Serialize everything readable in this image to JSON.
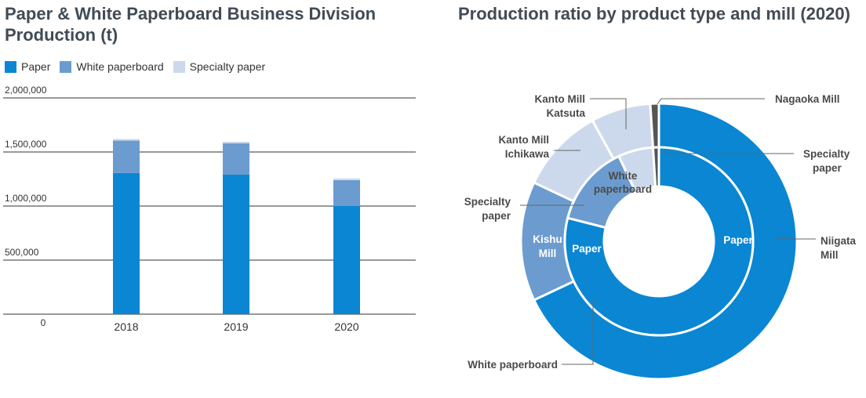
{
  "colors": {
    "paper": "#0a86d3",
    "white_paperboard": "#6c9ccf",
    "specialty_paper": "#ccd9ec",
    "nagaoka": "#555555",
    "axis": "#333333"
  },
  "chart_data": [
    {
      "type": "bar",
      "stacked": true,
      "title": "Paper & White Paperboard Business Division Production (t)",
      "categories": [
        "2018",
        "2019",
        "2020"
      ],
      "series": [
        {
          "name": "Paper",
          "color": "#0a86d3",
          "values": [
            1305000,
            1290000,
            1000000
          ]
        },
        {
          "name": "White paperboard",
          "color": "#6c9ccf",
          "values": [
            300000,
            290000,
            240000
          ]
        },
        {
          "name": "Specialty paper",
          "color": "#ccd9ec",
          "values": [
            15000,
            15000,
            15000
          ]
        }
      ],
      "y_ticks": [
        "0",
        "500,000",
        "1,000,000",
        "1,500,000",
        "2,000,000"
      ],
      "ylim": [
        0,
        2000000
      ],
      "legend": "top-left",
      "grid": true
    },
    {
      "type": "pie",
      "subtype": "nested-donut",
      "title": "Production ratio by product type and mill (2020)",
      "inner_ring": {
        "slices": [
          {
            "label": "Paper",
            "value": 79,
            "color": "#0a86d3"
          },
          {
            "label": "Paper",
            "value": 14,
            "color": "#6c9ccf"
          },
          {
            "label": "White paperboard",
            "value": 6,
            "color": "#ccd9ec"
          },
          {
            "label": "Specialty paper",
            "value": 1,
            "color": "#555555"
          }
        ]
      },
      "outer_ring": {
        "slices": [
          {
            "label": "Niigata Mill",
            "value": 68,
            "color": "#0a86d3"
          },
          {
            "label": "Kishu Mill",
            "value": 14,
            "color": "#6c9ccf"
          },
          {
            "label": "Kanto Mill Ichikawa",
            "value": 10,
            "color": "#ccd9ec"
          },
          {
            "label": "Kanto Mill Katsuta",
            "value": 7,
            "color": "#ccd9ec"
          },
          {
            "label": "Nagaoka Mill",
            "value": 1,
            "color": "#555555"
          }
        ]
      },
      "callouts": {
        "nagaoka": "Nagaoka Mill",
        "specialty_right_1": "Specialty",
        "specialty_right_2": "paper",
        "niigata_1": "Niigata",
        "niigata_2": "Mill",
        "katsuta_1": "Kanto Mill",
        "katsuta_2": "Katsuta",
        "ichikawa_1": "Kanto Mill",
        "ichikawa_2": "Ichikawa",
        "specialty_left_1": "Specialty",
        "specialty_left_2": "paper",
        "kishu_1": "Kishu",
        "kishu_2": "Mill",
        "inner_paper_left": "Paper",
        "inner_paper_right": "Paper",
        "inner_white_1": "White",
        "inner_white_2": "paperboard",
        "white_paperboard_bottom": "White paperboard"
      }
    }
  ]
}
